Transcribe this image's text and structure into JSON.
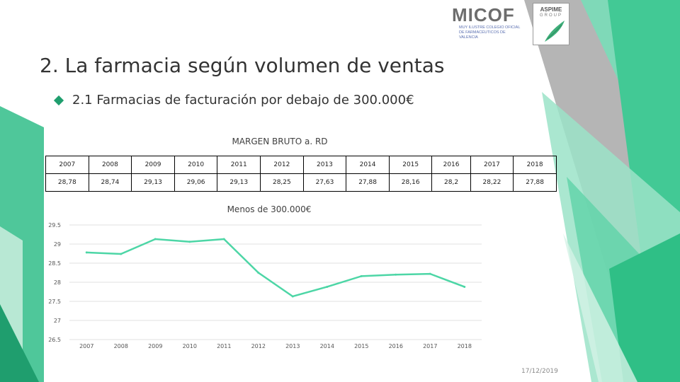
{
  "header": {
    "logo_micof": {
      "name": "MICOF",
      "subtitle": "MUY ILUSTRE COLEGIO OFICIAL DE FARMACÉUTICOS DE VALENCIA"
    },
    "logo_aspime": {
      "name": "ASPIME",
      "subtitle": "GROUP"
    }
  },
  "slide": {
    "title": "2. La farmacia según volumen de ventas",
    "subtitle": "2.1 Farmacias de facturación por debajo de 300.000€",
    "date": "17/12/2019",
    "accent_color": "#2e9c74"
  },
  "table": {
    "title": "MARGEN BRUTO a. RD",
    "years": [
      "2007",
      "2008",
      "2009",
      "2010",
      "2011",
      "2012",
      "2013",
      "2014",
      "2015",
      "2016",
      "2017",
      "2018"
    ],
    "values": [
      "28,78",
      "28,74",
      "29,13",
      "29,06",
      "29,13",
      "28,25",
      "27,63",
      "27,88",
      "28,16",
      "28,2",
      "28,22",
      "27,88"
    ]
  },
  "chart_data": {
    "type": "line",
    "title": "Menos de 300.000€",
    "categories": [
      "2007",
      "2008",
      "2009",
      "2010",
      "2011",
      "2012",
      "2013",
      "2014",
      "2015",
      "2016",
      "2017",
      "2018"
    ],
    "series": [
      {
        "values": [
          28.78,
          28.74,
          29.13,
          29.06,
          29.13,
          28.25,
          27.63,
          27.88,
          28.16,
          28.2,
          28.22,
          27.88
        ],
        "color": "#4dd6a6"
      }
    ],
    "yticks": [
      "29.5",
      "29",
      "28.5",
      "28",
      "27.5",
      "27",
      "26.5"
    ],
    "ylim": [
      26.5,
      29.5
    ],
    "grid": true,
    "legend": "none"
  }
}
